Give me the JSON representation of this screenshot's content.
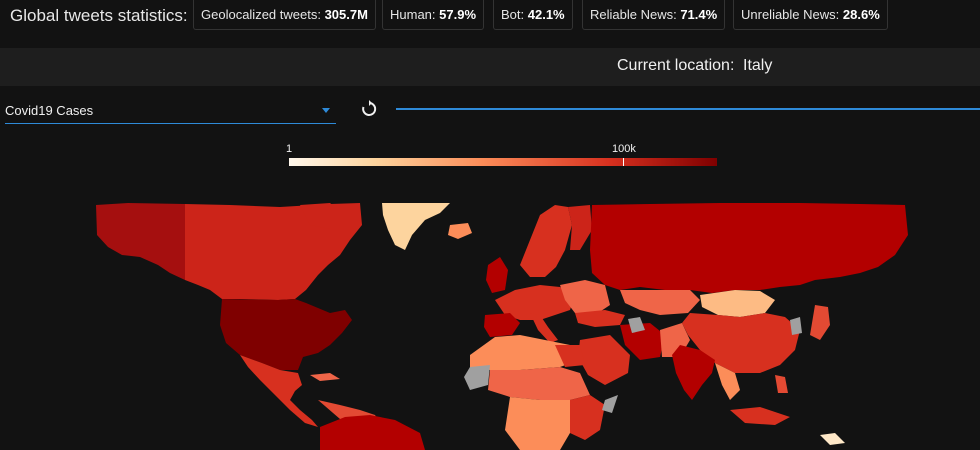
{
  "stats": {
    "title": "Global tweets statistics:",
    "items": [
      {
        "label": "Geolocalized tweets:",
        "value": "305.7M"
      },
      {
        "label": "Human:",
        "value": "57.9%"
      },
      {
        "label": "Bot:",
        "value": "42.1%"
      },
      {
        "label": "Reliable News:",
        "value": "71.4%"
      },
      {
        "label": "Unreliable News:",
        "value": "28.6%"
      }
    ]
  },
  "location": {
    "label": "Current location:",
    "value": "Italy"
  },
  "controls": {
    "dataset_select": "Covid19 Cases",
    "reset_icon": "refresh-icon"
  },
  "legend": {
    "min_label": "1",
    "mid_label": "100k",
    "colors": [
      "#fff7ec",
      "#fdd49e",
      "#fc8d59",
      "#d7301f",
      "#7f0000"
    ],
    "no_data_color": "#a0a0a0"
  },
  "map": {
    "countries": [
      {
        "name": "Alaska",
        "level": "very high"
      },
      {
        "name": "Canada",
        "level": "high"
      },
      {
        "name": "United States",
        "level": "very high"
      },
      {
        "name": "Mexico",
        "level": "high"
      },
      {
        "name": "Greenland",
        "level": "very low"
      },
      {
        "name": "Russia",
        "level": "very high"
      },
      {
        "name": "Mongolia",
        "level": "low"
      },
      {
        "name": "China",
        "level": "high"
      },
      {
        "name": "India",
        "level": "very high"
      },
      {
        "name": "Brazil",
        "level": "very high"
      }
    ]
  }
}
